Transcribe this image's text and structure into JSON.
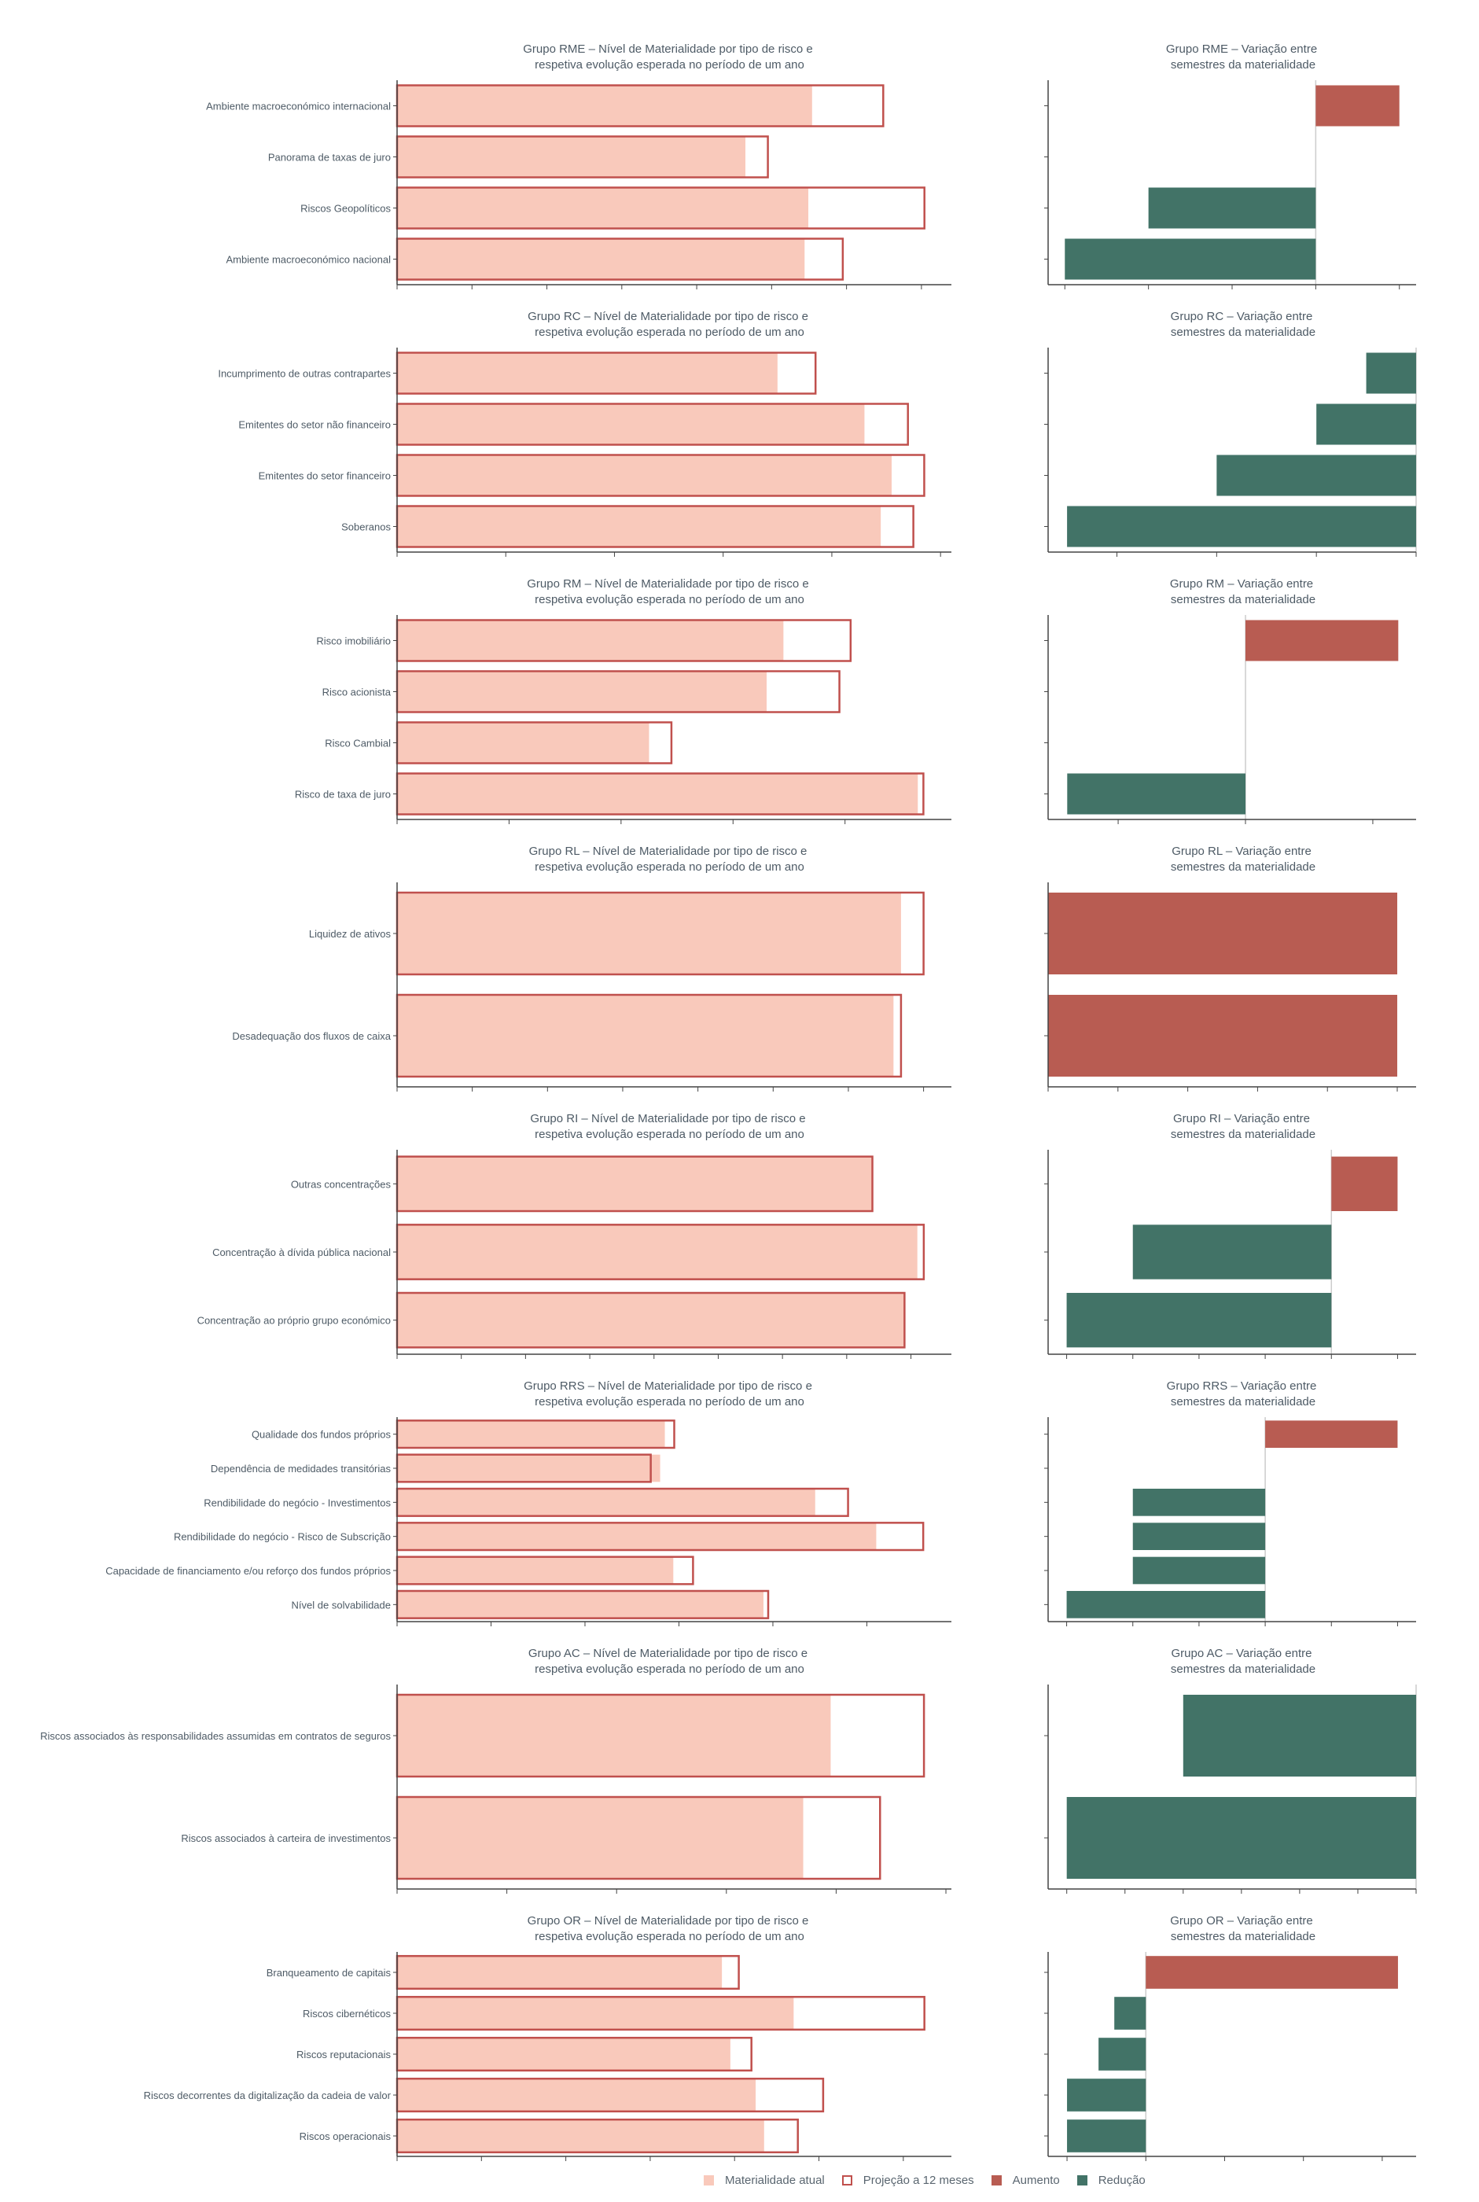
{
  "colors": {
    "current": "#f9c9bb",
    "projection": "#c0504d",
    "increase": "#b85c52",
    "decrease": "#427367",
    "text": "#4e5b66",
    "axis": "#444444",
    "zero_line": "#cccccc"
  },
  "legend": [
    {
      "key": "current",
      "label": "Materialidade atual",
      "style": "fill"
    },
    {
      "key": "projection",
      "label": "Projeção a 12 meses",
      "style": "outline"
    },
    {
      "key": "increase",
      "label": "Aumento",
      "style": "fill"
    },
    {
      "key": "decrease",
      "label": "Redução",
      "style": "fill"
    }
  ],
  "chart_data": [
    {
      "group": "RME",
      "type": "bar",
      "orientation": "horizontal",
      "left_title": [
        "Grupo RME – Nível de Materialidade por tipo de risco e",
        "respetiva evolução esperada no período de um ano"
      ],
      "right_title": [
        "Grupo RME – Variação entre",
        "semestres da materialidade"
      ],
      "left_xlim": [
        0,
        7.4
      ],
      "right_xlim": [
        -3.2,
        1.2
      ],
      "items": [
        {
          "label": "Ambiente macroeconómico internacional",
          "current": 5.54,
          "projection": 6.49,
          "change": 1
        },
        {
          "label": "Panorama de taxas de juro",
          "current": 4.65,
          "projection": 4.95,
          "change": 0
        },
        {
          "label": "Riscos Geopolíticos",
          "current": 5.49,
          "projection": 7.04,
          "change": -2
        },
        {
          "label": "Ambiente macroeconómico nacional",
          "current": 5.44,
          "projection": 5.95,
          "change": -3
        }
      ]
    },
    {
      "group": "RC",
      "type": "bar",
      "orientation": "horizontal",
      "left_title": [
        "Grupo RC – Nível de Materialidade por tipo de risco e",
        "respetiva evolução esperada no período de um ano"
      ],
      "right_title": [
        "Grupo RC – Variação entre",
        "semestres da materialidade"
      ],
      "left_xlim": [
        0,
        5.1
      ],
      "right_xlim": [
        -3.69,
        0
      ],
      "items": [
        {
          "label": "Incumprimento de outras contrapartes",
          "current": 3.5,
          "projection": 3.85,
          "change": -0.5
        },
        {
          "label": "Emitentes do setor não financeiro",
          "current": 4.3,
          "projection": 4.7,
          "change": -1
        },
        {
          "label": "Emitentes do setor financeiro",
          "current": 4.55,
          "projection": 4.85,
          "change": -2
        },
        {
          "label": "Soberanos",
          "current": 4.45,
          "projection": 4.75,
          "change": -3.5
        }
      ]
    },
    {
      "group": "RM",
      "type": "bar",
      "orientation": "horizontal",
      "left_title": [
        "Grupo RM – Nível de Materialidade por tipo de risco e",
        "respetiva evolução esperada no período de um ano"
      ],
      "right_title": [
        "Grupo RM – Variação entre",
        "semestres da materialidade"
      ],
      "left_xlim": [
        0,
        4.95
      ],
      "right_xlim": [
        -1.55,
        1.34
      ],
      "items": [
        {
          "label": "Risco imobiliário",
          "current": 3.45,
          "projection": 4.05,
          "change": 1.2
        },
        {
          "label": "Risco acionista",
          "current": 3.3,
          "projection": 3.95,
          "change": 0
        },
        {
          "label": "Risco Cambial",
          "current": 2.25,
          "projection": 2.45,
          "change": 0
        },
        {
          "label": "Risco de taxa de juro",
          "current": 4.65,
          "projection": 4.7,
          "change": -1.4
        }
      ]
    },
    {
      "group": "RL",
      "type": "bar",
      "orientation": "horizontal",
      "left_title": [
        "Grupo RL – Nível de Materialidade por tipo de risco e",
        "respetiva evolução esperada no período de um ano"
      ],
      "right_title": [
        "Grupo RL – Variação entre",
        "semestres da materialidade"
      ],
      "left_xlim": [
        0,
        7.37
      ],
      "right_xlim": [
        0,
        5.27
      ],
      "items": [
        {
          "label": "Liquidez de ativos",
          "current": 6.7,
          "projection": 7.0,
          "change": 5
        },
        {
          "label": "Desadequação dos fluxos de caixa",
          "current": 6.6,
          "projection": 6.7,
          "change": 5
        }
      ]
    },
    {
      "group": "RI",
      "type": "bar",
      "orientation": "horizontal",
      "left_title": [
        "Grupo RI – Nível de Materialidade por tipo de risco e",
        "respetiva evolução esperada no período de um ano"
      ],
      "right_title": [
        "Grupo RI – Variação entre",
        "semestres da materialidade"
      ],
      "left_xlim": [
        0,
        8.63
      ],
      "right_xlim": [
        -4.28,
        1.28
      ],
      "items": [
        {
          "label": "Outras concentrações",
          "current": 7.4,
          "projection": 7.4,
          "change": 1
        },
        {
          "label": "Concentração à dívida pública nacional",
          "current": 8.1,
          "projection": 8.2,
          "change": -3
        },
        {
          "label": "Concentração ao próprio grupo económico",
          "current": 7.9,
          "projection": 7.9,
          "change": -4
        }
      ]
    },
    {
      "group": "RRS",
      "type": "bar",
      "orientation": "horizontal",
      "left_title": [
        "Grupo RRS – Nível de Materialidade por tipo de risco e",
        "respetiva evolução esperada no período de um ano"
      ],
      "right_title": [
        "Grupo RRS – Variação entre",
        "semestres da materialidade"
      ],
      "left_xlim": [
        0,
        5.9
      ],
      "right_xlim": [
        -3.28,
        2.28
      ],
      "items": [
        {
          "label": "Qualidade dos fundos próprios",
          "current": 2.85,
          "projection": 2.95,
          "change": 2
        },
        {
          "label": "Dependência de medidades transitórias",
          "current": 2.8,
          "projection": 2.7,
          "change": 0
        },
        {
          "label": "Rendibilidade do negócio - Investimentos",
          "current": 4.45,
          "projection": 4.8,
          "change": -2
        },
        {
          "label": "Rendibilidade do negócio - Risco de Subscrição",
          "current": 5.1,
          "projection": 5.6,
          "change": -2
        },
        {
          "label": "Capacidade de financiamento e/ou reforço dos fundos próprios",
          "current": 2.94,
          "projection": 3.15,
          "change": -2
        },
        {
          "label": "Nível de solvabilidade",
          "current": 3.9,
          "projection": 3.95,
          "change": -3
        }
      ]
    },
    {
      "group": "AC",
      "type": "bar",
      "orientation": "horizontal",
      "left_title": [
        "Grupo AC – Nível de Materialidade por tipo de risco e",
        "respetiva evolução esperada no período de um ano"
      ],
      "right_title": [
        "Grupo AC – Variação entre",
        "semestres da materialidade"
      ],
      "left_xlim": [
        0,
        5.05
      ],
      "right_xlim": [
        -6.32,
        0
      ],
      "items": [
        {
          "label": "Riscos associados às responsabilidades assumidas em contratos de seguros",
          "current": 3.95,
          "projection": 4.8,
          "change": -4
        },
        {
          "label": "Riscos associados à carteira de investimentos",
          "current": 3.7,
          "projection": 4.4,
          "change": -6
        }
      ]
    },
    {
      "group": "OR",
      "type": "bar",
      "orientation": "horizontal",
      "left_title": [
        "Grupo OR – Nível de Materialidade por tipo de risco e",
        "respetiva evolução esperada no período de um ano"
      ],
      "right_title": [
        "Grupo OR – Variação entre",
        "semestres da materialidade"
      ],
      "left_xlim": [
        0,
        6.57
      ],
      "right_xlim": [
        -1.24,
        3.43
      ],
      "items": [
        {
          "label": "Branqueamento de capitais",
          "current": 3.85,
          "projection": 4.05,
          "change": 3.2
        },
        {
          "label": "Riscos cibernéticos",
          "current": 4.7,
          "projection": 6.25,
          "change": -0.4
        },
        {
          "label": "Riscos reputacionais",
          "current": 3.95,
          "projection": 4.2,
          "change": -0.6
        },
        {
          "label": "Riscos decorrentes da digitalização da cadeia de valor",
          "current": 4.25,
          "projection": 5.05,
          "change": -1
        },
        {
          "label": "Riscos operacionais",
          "current": 4.35,
          "projection": 4.75,
          "change": -1
        }
      ]
    }
  ]
}
